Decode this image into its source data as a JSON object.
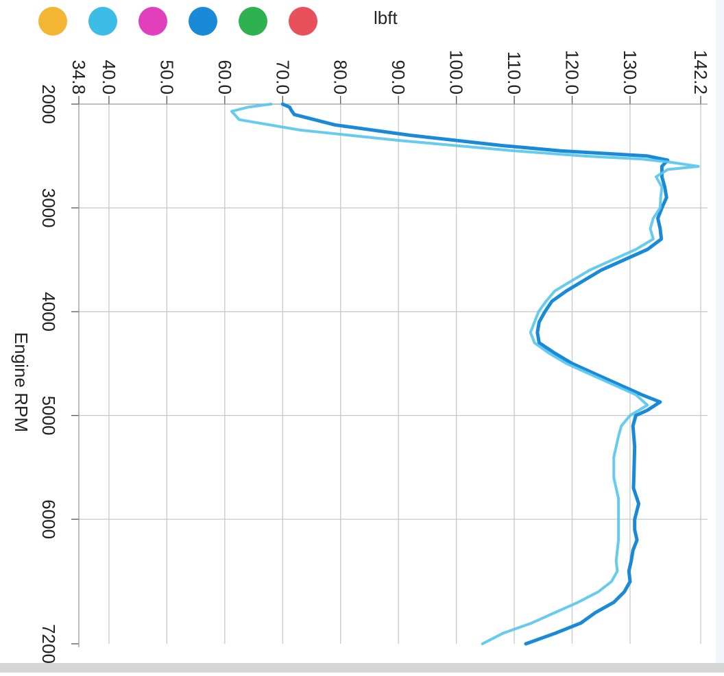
{
  "chart_data": {
    "type": "line",
    "orientation": "rotated-90-clockwise",
    "ylabel": "lbft",
    "xlabel": "Engine RPM",
    "xlim": [
      2000,
      7200
    ],
    "ylim": [
      34.8,
      142.2
    ],
    "x_ticks": [
      "2000",
      "3000",
      "4000",
      "5000",
      "6000",
      "7200"
    ],
    "y_ticks": [
      "34.8",
      "40.0",
      "50.0",
      "60.0",
      "70.0",
      "80.0",
      "90.0",
      "100.0",
      "110.0",
      "120.0",
      "130.0",
      "142.2"
    ],
    "grid": true,
    "legend_position": "top-left",
    "legend_colors": [
      "#f2b632",
      "#3cbde8",
      "#e23fbd",
      "#1a8ad8",
      "#2eb24f",
      "#e8505b"
    ],
    "series": [
      {
        "color": "#1a8ad8",
        "points": [
          [
            2000,
            70.0
          ],
          [
            2030,
            71.2
          ],
          [
            2060,
            71.5
          ],
          [
            2100,
            72.0
          ],
          [
            2200,
            79
          ],
          [
            2300,
            92
          ],
          [
            2400,
            108
          ],
          [
            2450,
            118
          ],
          [
            2480,
            127
          ],
          [
            2500,
            133
          ],
          [
            2540,
            136.5
          ],
          [
            2600,
            135.5
          ],
          [
            2700,
            135.5
          ],
          [
            2800,
            136.0
          ],
          [
            2900,
            136.3
          ],
          [
            3000,
            135.5
          ],
          [
            3100,
            134.8
          ],
          [
            3200,
            135.2
          ],
          [
            3300,
            135.4
          ],
          [
            3400,
            133
          ],
          [
            3500,
            129
          ],
          [
            3600,
            125
          ],
          [
            3700,
            122
          ],
          [
            3800,
            119
          ],
          [
            3900,
            116.5
          ],
          [
            4000,
            115.3
          ],
          [
            4100,
            114.3
          ],
          [
            4200,
            114.0
          ],
          [
            4300,
            114.3
          ],
          [
            4400,
            117
          ],
          [
            4500,
            120
          ],
          [
            4600,
            124
          ],
          [
            4700,
            128
          ],
          [
            4800,
            132
          ],
          [
            4870,
            135.2
          ],
          [
            4950,
            133
          ],
          [
            5000,
            131
          ],
          [
            5100,
            130.5
          ],
          [
            5300,
            130.8
          ],
          [
            5500,
            130.7
          ],
          [
            5700,
            130.6
          ],
          [
            5850,
            131.5
          ],
          [
            6000,
            130.8
          ],
          [
            6100,
            130.8
          ],
          [
            6200,
            131.2
          ],
          [
            6300,
            130.5
          ],
          [
            6400,
            130.2
          ],
          [
            6500,
            129.8
          ],
          [
            6600,
            130.0
          ],
          [
            6700,
            129.0
          ],
          [
            6800,
            127.2
          ],
          [
            6900,
            124
          ],
          [
            7000,
            121.5
          ],
          [
            7100,
            117
          ],
          [
            7200,
            112.0
          ]
        ]
      },
      {
        "color": "#55c5ec",
        "points": [
          [
            2000,
            68.0
          ],
          [
            2030,
            64
          ],
          [
            2070,
            61.2
          ],
          [
            2150,
            62.5
          ],
          [
            2250,
            73
          ],
          [
            2350,
            90
          ],
          [
            2450,
            110
          ],
          [
            2500,
            122
          ],
          [
            2530,
            132
          ],
          [
            2560,
            137
          ],
          [
            2600,
            141.8
          ],
          [
            2630,
            136.5
          ],
          [
            2700,
            134.5
          ],
          [
            2800,
            135.5
          ],
          [
            2900,
            135.3
          ],
          [
            3000,
            135.2
          ],
          [
            3100,
            134.0
          ],
          [
            3200,
            133.5
          ],
          [
            3300,
            134.0
          ],
          [
            3400,
            131
          ],
          [
            3500,
            127
          ],
          [
            3600,
            123
          ],
          [
            3700,
            120
          ],
          [
            3800,
            117
          ],
          [
            3900,
            115.5
          ],
          [
            4000,
            114.2
          ],
          [
            4100,
            113.5
          ],
          [
            4200,
            112.8
          ],
          [
            4300,
            113.5
          ],
          [
            4400,
            116
          ],
          [
            4500,
            119
          ],
          [
            4600,
            123
          ],
          [
            4700,
            127
          ],
          [
            4800,
            131
          ],
          [
            4900,
            133
          ],
          [
            5000,
            130
          ],
          [
            5100,
            128.5
          ],
          [
            5200,
            128.0
          ],
          [
            5400,
            127.2
          ],
          [
            5600,
            127.2
          ],
          [
            5800,
            128.0
          ],
          [
            6000,
            128.0
          ],
          [
            6200,
            128.0
          ],
          [
            6400,
            127.6
          ],
          [
            6500,
            127.8
          ],
          [
            6600,
            126.8
          ],
          [
            6700,
            124.5
          ],
          [
            6800,
            121
          ],
          [
            6900,
            117
          ],
          [
            7000,
            113
          ],
          [
            7100,
            108
          ],
          [
            7200,
            104.5
          ]
        ]
      }
    ]
  }
}
